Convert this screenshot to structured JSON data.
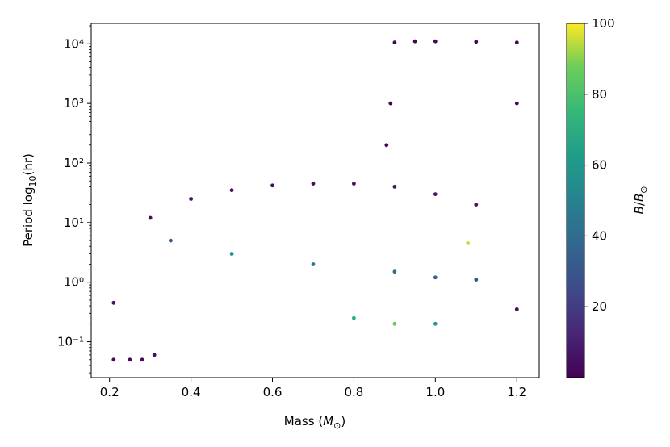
{
  "chart_data": {
    "type": "scatter",
    "title": "",
    "xlabel": "Mass (M☉)",
    "ylabel": "Period log₁₀(hr)",
    "xlim": [
      0.155,
      1.255
    ],
    "ylim": [
      0.025,
      22000
    ],
    "y_scale": "log",
    "x_ticks": [
      0.2,
      0.4,
      0.6,
      0.8,
      1.0,
      1.2
    ],
    "x_tick_labels": [
      "0.2",
      "0.4",
      "0.6",
      "0.8",
      "1.0",
      "1.2"
    ],
    "y_ticks": [
      0.1,
      1,
      10,
      100,
      1000,
      10000
    ],
    "y_tick_labels": [
      "10⁻¹",
      "10⁰",
      "10¹",
      "10²",
      "10³",
      "10⁴"
    ],
    "grid": false,
    "colorbar": {
      "label": "B/B☉",
      "range": [
        0,
        100
      ],
      "ticks": [
        20,
        40,
        60,
        80,
        100
      ],
      "tick_labels": [
        "20",
        "40",
        "60",
        "80",
        "100"
      ],
      "colormap": "viridis",
      "colors": [
        "#440154",
        "#3b528b",
        "#21918c",
        "#5ec962",
        "#fde725"
      ]
    },
    "series": [
      {
        "values": [
          {
            "x": 0.9,
            "y": 10500,
            "c": 2
          },
          {
            "x": 0.95,
            "y": 11000,
            "c": 2
          },
          {
            "x": 1.0,
            "y": 11000,
            "c": 2
          },
          {
            "x": 1.1,
            "y": 10800,
            "c": 2
          },
          {
            "x": 1.2,
            "y": 10500,
            "c": 2
          },
          {
            "x": 0.88,
            "y": 200,
            "c": 2
          },
          {
            "x": 0.89,
            "y": 1000,
            "c": 2
          },
          {
            "x": 1.2,
            "y": 1000,
            "c": 3
          },
          {
            "x": 1.2,
            "y": 0.35,
            "c": 3
          },
          {
            "x": 0.3,
            "y": 12,
            "c": 4
          },
          {
            "x": 0.4,
            "y": 25,
            "c": 5
          },
          {
            "x": 0.5,
            "y": 35,
            "c": 5
          },
          {
            "x": 0.6,
            "y": 42,
            "c": 5
          },
          {
            "x": 0.7,
            "y": 45,
            "c": 5
          },
          {
            "x": 0.8,
            "y": 45,
            "c": 6
          },
          {
            "x": 0.9,
            "y": 40,
            "c": 6
          },
          {
            "x": 1.0,
            "y": 30,
            "c": 7
          },
          {
            "x": 1.1,
            "y": 20,
            "c": 8
          },
          {
            "x": 0.35,
            "y": 5,
            "c": 30
          },
          {
            "x": 0.5,
            "y": 3,
            "c": 55
          },
          {
            "x": 0.7,
            "y": 2,
            "c": 45
          },
          {
            "x": 0.9,
            "y": 1.5,
            "c": 40
          },
          {
            "x": 1.0,
            "y": 1.2,
            "c": 35
          },
          {
            "x": 1.1,
            "y": 1.1,
            "c": 30
          },
          {
            "x": 1.08,
            "y": 4.5,
            "c": 95
          },
          {
            "x": 0.8,
            "y": 0.25,
            "c": 70
          },
          {
            "x": 0.9,
            "y": 0.2,
            "c": 85
          },
          {
            "x": 1.0,
            "y": 0.2,
            "c": 60
          },
          {
            "x": 0.21,
            "y": 0.45,
            "c": 5
          },
          {
            "x": 0.21,
            "y": 0.05,
            "c": 3
          },
          {
            "x": 0.25,
            "y": 0.05,
            "c": 3
          },
          {
            "x": 0.28,
            "y": 0.05,
            "c": 4
          },
          {
            "x": 0.31,
            "y": 0.06,
            "c": 5
          }
        ]
      }
    ]
  }
}
